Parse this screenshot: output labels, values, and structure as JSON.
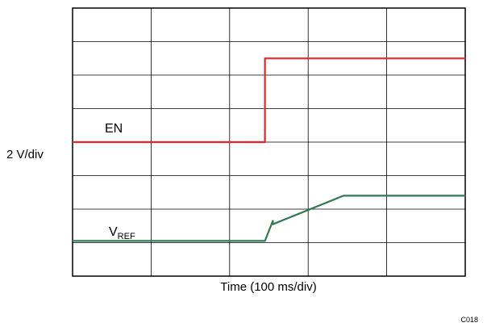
{
  "chart_data": {
    "type": "line",
    "title": "",
    "xlabel": "Time (100 ms/div)",
    "ylabel": "2 V/div",
    "figure_id": "C018",
    "grid": true,
    "x_divisions": 5,
    "y_divisions": 8,
    "xlim": [
      0,
      5
    ],
    "ylim": [
      0,
      8
    ],
    "series": [
      {
        "name": "EN",
        "color": "#e8232a",
        "x": [
          0,
          2.45,
          2.45,
          5.0
        ],
        "y": [
          4.0,
          4.0,
          6.5,
          6.5
        ]
      },
      {
        "name": "V",
        "subscript": "REF",
        "color": "#2f7a52",
        "x": [
          0,
          2.45,
          2.55,
          2.55,
          3.45,
          5.0
        ],
        "y": [
          1.05,
          1.05,
          1.65,
          1.55,
          2.4,
          2.4
        ]
      }
    ]
  }
}
